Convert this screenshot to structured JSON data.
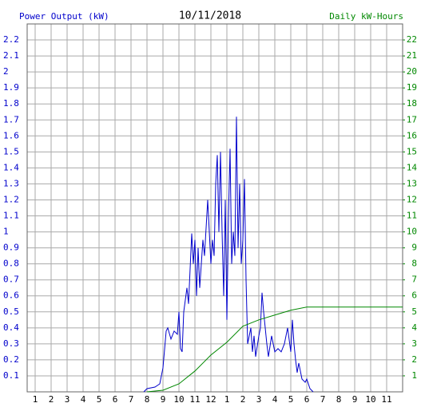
{
  "chart_data": {
    "type": "line",
    "title": "10/11/2018",
    "y_label": "Power Output (kW)",
    "y2_label": "Daily kW-Hours",
    "xlim": [
      0.5,
      24
    ],
    "xticks": [
      1,
      2,
      3,
      4,
      5,
      6,
      7,
      8,
      9,
      10,
      11,
      12,
      {
        "value": 13,
        "label": "1"
      },
      {
        "value": 14,
        "label": "2"
      },
      {
        "value": 15,
        "label": "3"
      },
      {
        "value": 16,
        "label": "4"
      },
      {
        "value": 17,
        "label": "5"
      },
      {
        "value": 18,
        "label": "6"
      },
      {
        "value": 19,
        "label": "7"
      },
      {
        "value": 20,
        "label": "8"
      },
      {
        "value": 21,
        "label": "9"
      },
      {
        "value": 22,
        "label": "10"
      },
      {
        "value": 23,
        "label": "11"
      }
    ],
    "ylim": [
      0,
      2.3
    ],
    "yticks": [
      0.1,
      0.2,
      0.3,
      0.4,
      0.5,
      0.6,
      0.7,
      0.8,
      0.9,
      1.0,
      1.1,
      1.2,
      1.3,
      1.4,
      1.5,
      1.6,
      1.7,
      1.8,
      1.9,
      2.0,
      2.1,
      2.2
    ],
    "y2lim": [
      0,
      23
    ],
    "y2ticks": [
      1,
      2,
      3,
      4,
      5,
      6,
      7,
      8,
      9,
      10,
      11,
      12,
      13,
      14,
      15,
      16,
      17,
      18,
      19,
      20,
      21,
      22
    ],
    "grid": true,
    "series": [
      {
        "name": "Power Output (kW)",
        "color": "#0000cc",
        "x": [
          7.8,
          8,
          8.5,
          8.8,
          9,
          9.2,
          9.3,
          9.5,
          9.7,
          9.9,
          10,
          10.1,
          10.2,
          10.3,
          10.5,
          10.6,
          10.8,
          10.9,
          11,
          11.1,
          11.2,
          11.3,
          11.5,
          11.6,
          11.8,
          11.9,
          12,
          12.1,
          12.2,
          12.3,
          12.4,
          12.5,
          12.6,
          12.7,
          12.8,
          12.9,
          13,
          13.1,
          13.2,
          13.3,
          13.4,
          13.5,
          13.6,
          13.7,
          13.8,
          13.9,
          14,
          14.1,
          14.2,
          14.3,
          14.5,
          14.6,
          14.7,
          14.8,
          15,
          15.1,
          15.2,
          15.3,
          15.5,
          15.6,
          15.8,
          16,
          16.2,
          16.4,
          16.6,
          16.8,
          17,
          17.1,
          17.2,
          17.3,
          17.4,
          17.5,
          17.7,
          17.9,
          18,
          18.2,
          18.4
        ],
        "values": [
          0,
          0.02,
          0.03,
          0.05,
          0.15,
          0.38,
          0.4,
          0.33,
          0.38,
          0.36,
          0.5,
          0.27,
          0.25,
          0.5,
          0.65,
          0.55,
          0.99,
          0.8,
          0.95,
          0.6,
          0.9,
          0.65,
          0.95,
          0.85,
          1.2,
          1.0,
          0.8,
          0.95,
          0.85,
          1.3,
          1.48,
          1.0,
          1.5,
          1.0,
          0.6,
          1.2,
          0.45,
          1.1,
          1.52,
          0.8,
          1.0,
          0.85,
          1.72,
          0.9,
          1.3,
          0.8,
          0.95,
          1.33,
          0.7,
          0.3,
          0.4,
          0.25,
          0.35,
          0.22,
          0.35,
          0.4,
          0.62,
          0.5,
          0.3,
          0.22,
          0.35,
          0.25,
          0.27,
          0.25,
          0.3,
          0.4,
          0.25,
          0.45,
          0.3,
          0.2,
          0.12,
          0.18,
          0.08,
          0.06,
          0.08,
          0.02,
          0
        ]
      },
      {
        "name": "Daily kW-Hours",
        "color": "#008800",
        "axis": "y2",
        "x": [
          8,
          9,
          10,
          11,
          12,
          13,
          14,
          15,
          16,
          17,
          18,
          19,
          24
        ],
        "values": [
          0,
          0.1,
          0.5,
          1.3,
          2.3,
          3.1,
          4.1,
          4.5,
          4.8,
          5.1,
          5.3,
          5.3,
          5.3
        ]
      }
    ]
  }
}
